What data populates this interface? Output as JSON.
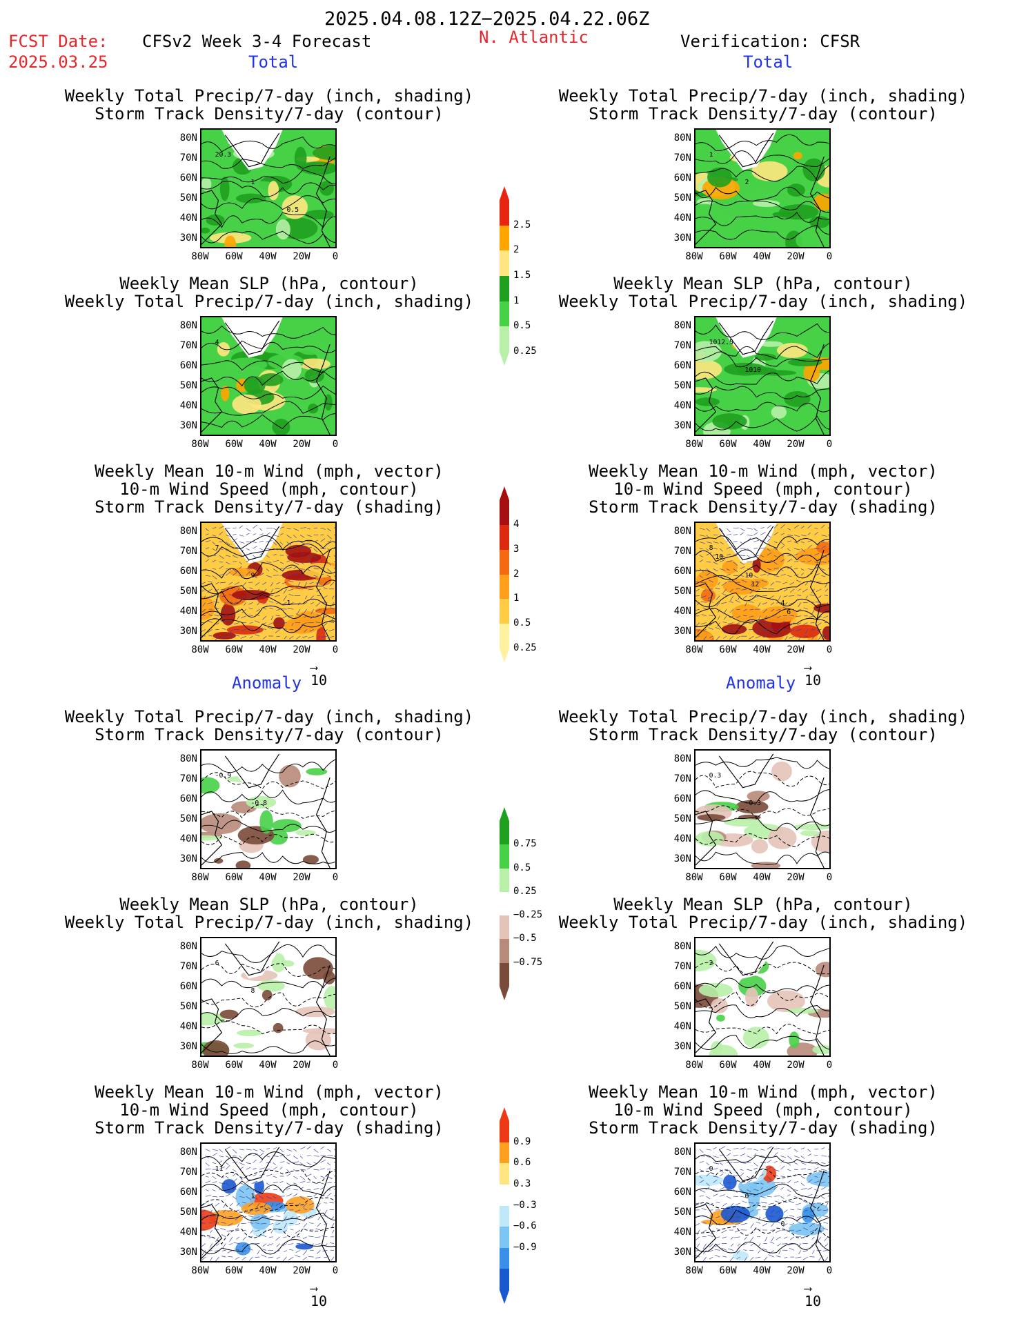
{
  "header": {
    "date_range": "2025.04.08.12Z−2025.04.22.06Z",
    "fcst_label": "FCST Date:",
    "fcst_date": "2025.03.25",
    "model_title": "CFSv2 Week 3-4 Forecast",
    "region": "N. Atlantic",
    "verification": "Verification: CFSR"
  },
  "sections": {
    "total": "Total",
    "anomaly": "Anomaly"
  },
  "titles": {
    "precip_storm": [
      "Weekly Total Precip/7-day (inch, shading)",
      "Storm Track Density/7-day (contour)"
    ],
    "slp_precip": [
      "Weekly Mean SLP (hPa, contour)",
      "Weekly Total Precip/7-day (inch, shading)"
    ],
    "wind_storm": [
      "Weekly Mean 10-m Wind (mph, vector)",
      "10-m Wind Speed (mph, contour)",
      "Storm Track Density/7-day (shading)"
    ]
  },
  "axes": {
    "lat_ticks": [
      "80N",
      "70N",
      "60N",
      "50N",
      "40N",
      "30N"
    ],
    "lon_ticks": [
      "80W",
      "60W",
      "40W",
      "20W",
      "0"
    ]
  },
  "vector_ref": "10",
  "colorbars": {
    "precip_total": {
      "labels": [
        "2.5",
        "2",
        "1.5",
        "1",
        "0.5",
        "0.25"
      ],
      "colors": [
        "#e8260f",
        "#ffa500",
        "#ffe680",
        "#1fa01f",
        "#47d147",
        "#b8f0a8"
      ]
    },
    "storm_total": {
      "labels": [
        "4",
        "3",
        "2",
        "1",
        "0.5",
        "0.25"
      ],
      "colors": [
        "#a50f0f",
        "#dd2a0f",
        "#f46a12",
        "#ff9f1a",
        "#ffcc44",
        "#fff1a0"
      ]
    },
    "precip_anom": {
      "labels": [
        "0.75",
        "0.5",
        "0.25",
        "−0.25",
        "−0.5",
        "−0.75"
      ],
      "colors": [
        "#1fa01f",
        "#47d147",
        "#b8f0a8",
        "#ffffff",
        "#e4c3b8",
        "#b88a7a",
        "#7a4a3a"
      ]
    },
    "storm_anom": {
      "labels": [
        "0.9",
        "0.6",
        "0.3",
        "−0.3",
        "−0.6",
        "−0.9"
      ],
      "colors": [
        "#ee3a14",
        "#ffa020",
        "#ffe680",
        "#ffffff",
        "#bfe8f8",
        "#7cc4f2",
        "#3a90e8",
        "#1a58d0"
      ]
    }
  },
  "contour_labels": {
    "p1l": [
      "20.3",
      "1",
      "0.5"
    ],
    "p1r": [
      "1",
      "2"
    ],
    "p2l": [
      "4"
    ],
    "p2r": [
      "1012.5",
      "1010"
    ],
    "p3l": [
      "7",
      "9",
      "1"
    ],
    "p3r": [
      "8",
      "10",
      "4",
      "10",
      "12",
      "6"
    ],
    "p4l": [
      "-0.9",
      "-0.8"
    ],
    "p4r": [
      "0.3",
      "-0.3"
    ],
    "p5l": [
      "6",
      "8"
    ],
    "p5r": [
      "2"
    ],
    "p6l": [
      "11",
      "1"
    ],
    "p6r": [
      "0",
      "0",
      "0"
    ]
  }
}
